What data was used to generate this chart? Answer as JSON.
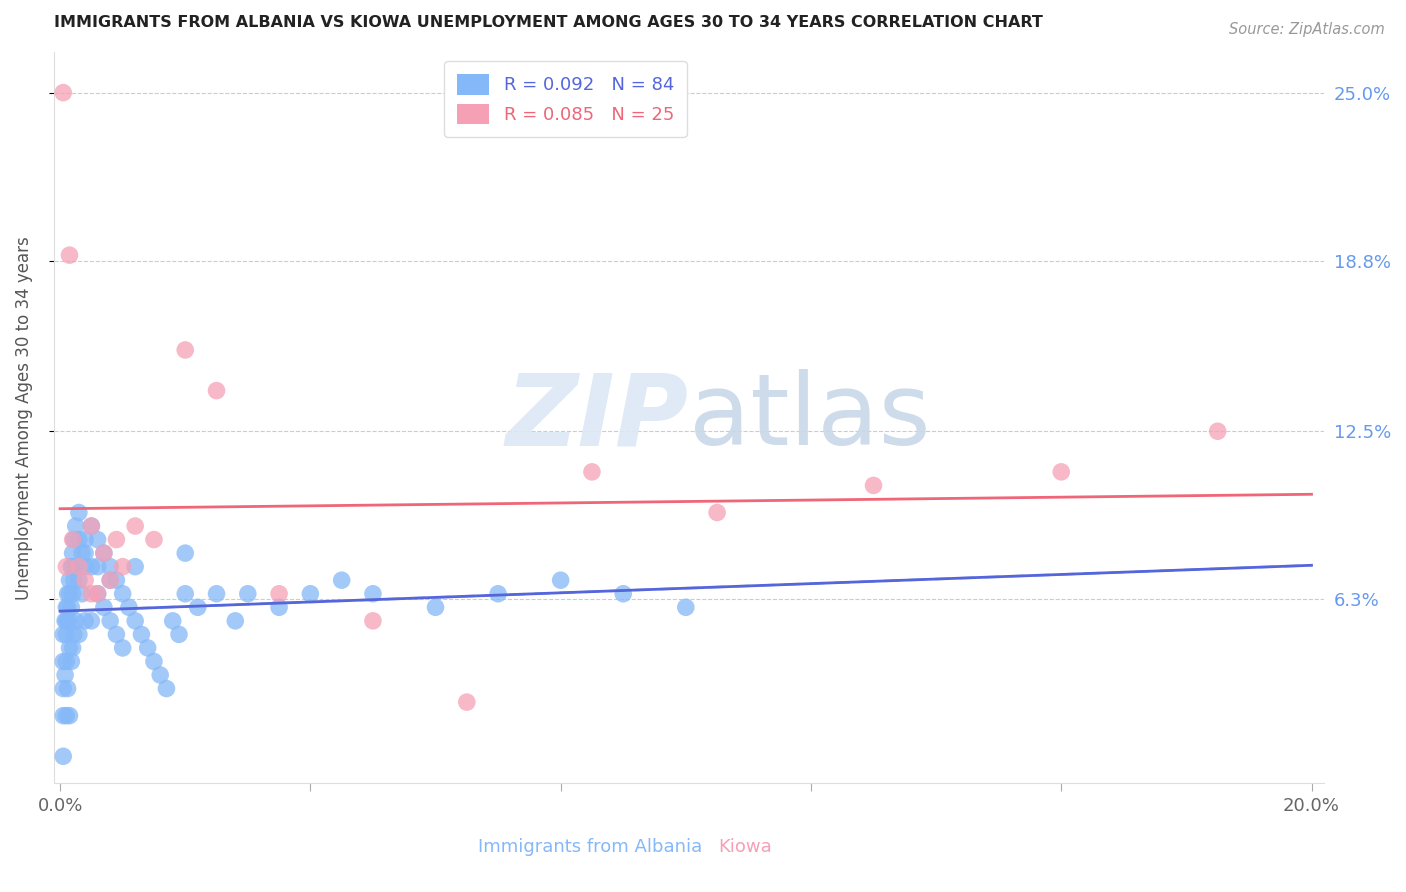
{
  "title": "IMMIGRANTS FROM ALBANIA VS KIOWA UNEMPLOYMENT AMONG AGES 30 TO 34 YEARS CORRELATION CHART",
  "source": "Source: ZipAtlas.com",
  "ylabel": "Unemployment Among Ages 30 to 34 years",
  "xlabel_label_albania": "Immigrants from Albania",
  "xlabel_label_kiowa": "Kiowa",
  "x_min": 0.0,
  "x_max": 0.2,
  "y_min": 0.0,
  "y_max": 0.265,
  "x_ticks": [
    0.0,
    0.04,
    0.08,
    0.12,
    0.16,
    0.2
  ],
  "y_tick_labels_right": [
    "25.0%",
    "18.8%",
    "12.5%",
    "6.3%"
  ],
  "y_tick_vals_right": [
    0.25,
    0.188,
    0.125,
    0.063
  ],
  "albania_color": "#85b8f8",
  "kiowa_color": "#f5a0b5",
  "albania_line_color": "#5566dd",
  "kiowa_line_color": "#ee6677",
  "legend_r_albania": "R = 0.092",
  "legend_n_albania": "N = 84",
  "legend_r_kiowa": "R = 0.085",
  "legend_n_kiowa": "N = 25",
  "albania_x": [
    0.0005,
    0.0005,
    0.0005,
    0.0005,
    0.0005,
    0.0008,
    0.0008,
    0.001,
    0.001,
    0.001,
    0.001,
    0.001,
    0.0012,
    0.0012,
    0.0012,
    0.0012,
    0.0015,
    0.0015,
    0.0015,
    0.0015,
    0.0015,
    0.0018,
    0.0018,
    0.0018,
    0.002,
    0.002,
    0.002,
    0.002,
    0.0022,
    0.0022,
    0.0022,
    0.0025,
    0.0025,
    0.0025,
    0.003,
    0.003,
    0.003,
    0.003,
    0.0035,
    0.0035,
    0.004,
    0.004,
    0.004,
    0.005,
    0.005,
    0.005,
    0.006,
    0.006,
    0.007,
    0.007,
    0.008,
    0.008,
    0.009,
    0.009,
    0.01,
    0.01,
    0.011,
    0.012,
    0.013,
    0.014,
    0.015,
    0.016,
    0.017,
    0.018,
    0.019,
    0.02,
    0.022,
    0.025,
    0.028,
    0.03,
    0.035,
    0.04,
    0.045,
    0.05,
    0.06,
    0.07,
    0.08,
    0.09,
    0.1,
    0.004,
    0.006,
    0.008,
    0.012,
    0.02
  ],
  "albania_y": [
    0.05,
    0.04,
    0.03,
    0.02,
    0.005,
    0.055,
    0.035,
    0.06,
    0.055,
    0.05,
    0.04,
    0.02,
    0.065,
    0.06,
    0.055,
    0.03,
    0.07,
    0.065,
    0.055,
    0.045,
    0.02,
    0.075,
    0.06,
    0.04,
    0.08,
    0.075,
    0.065,
    0.045,
    0.085,
    0.07,
    0.05,
    0.09,
    0.075,
    0.055,
    0.095,
    0.085,
    0.07,
    0.05,
    0.08,
    0.065,
    0.085,
    0.075,
    0.055,
    0.09,
    0.075,
    0.055,
    0.085,
    0.065,
    0.08,
    0.06,
    0.075,
    0.055,
    0.07,
    0.05,
    0.065,
    0.045,
    0.06,
    0.055,
    0.05,
    0.045,
    0.04,
    0.035,
    0.03,
    0.055,
    0.05,
    0.065,
    0.06,
    0.065,
    0.055,
    0.065,
    0.06,
    0.065,
    0.07,
    0.065,
    0.06,
    0.065,
    0.07,
    0.065,
    0.06,
    0.08,
    0.075,
    0.07,
    0.075,
    0.08
  ],
  "kiowa_x": [
    0.0005,
    0.001,
    0.0015,
    0.002,
    0.003,
    0.004,
    0.005,
    0.005,
    0.006,
    0.007,
    0.008,
    0.009,
    0.01,
    0.012,
    0.015,
    0.02,
    0.025,
    0.035,
    0.05,
    0.065,
    0.085,
    0.105,
    0.13,
    0.16,
    0.185
  ],
  "kiowa_y": [
    0.25,
    0.075,
    0.19,
    0.085,
    0.075,
    0.07,
    0.065,
    0.09,
    0.065,
    0.08,
    0.07,
    0.085,
    0.075,
    0.09,
    0.085,
    0.155,
    0.14,
    0.065,
    0.055,
    0.025,
    0.11,
    0.095,
    0.105,
    0.11,
    0.125
  ]
}
